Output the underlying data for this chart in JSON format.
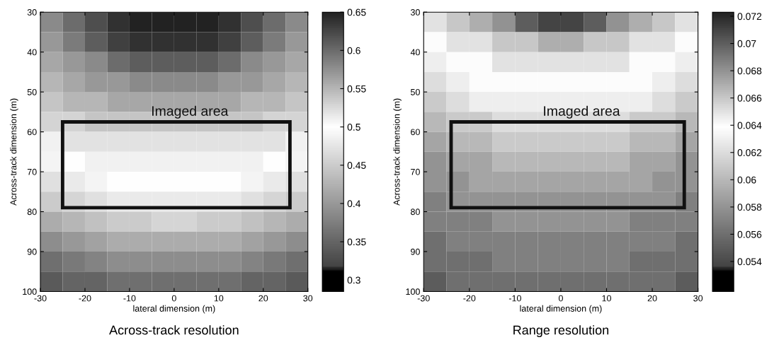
{
  "chart_data": [
    {
      "type": "heatmap",
      "title": "Across-track resolution",
      "xlabel": "lateral dimension (m)",
      "ylabel": "Across-track dimension (m)",
      "x": [
        -27.5,
        -22.5,
        -17.5,
        -12.5,
        -7.5,
        -2.5,
        2.5,
        7.5,
        12.5,
        17.5,
        22.5,
        27.5
      ],
      "y": [
        32.5,
        37.5,
        42.5,
        47.5,
        52.5,
        57.5,
        62.5,
        67.5,
        72.5,
        77.5,
        82.5,
        87.5,
        92.5,
        97.5
      ],
      "xlim": [
        -30,
        30
      ],
      "ylim": [
        100,
        30
      ],
      "xticks": [
        -30,
        -20,
        -10,
        0,
        10,
        20,
        30
      ],
      "yticks": [
        30,
        40,
        50,
        60,
        70,
        80,
        90,
        100
      ],
      "clim": [
        0.285,
        0.65
      ],
      "cticks": [
        0.3,
        0.35,
        0.4,
        0.45,
        0.5,
        0.55,
        0.6,
        0.65
      ],
      "annotations": [
        "Imaged area"
      ],
      "cells": [
        [
          0.58,
          0.6,
          0.62,
          0.64,
          0.65,
          0.65,
          0.65,
          0.65,
          0.64,
          0.62,
          0.6,
          0.58
        ],
        [
          0.57,
          0.59,
          0.61,
          0.63,
          0.64,
          0.64,
          0.64,
          0.64,
          0.63,
          0.61,
          0.59,
          0.57
        ],
        [
          0.56,
          0.57,
          0.58,
          0.6,
          0.61,
          0.61,
          0.61,
          0.61,
          0.6,
          0.58,
          0.57,
          0.56
        ],
        [
          0.55,
          0.56,
          0.57,
          0.57,
          0.58,
          0.58,
          0.58,
          0.58,
          0.57,
          0.57,
          0.56,
          0.55
        ],
        [
          0.54,
          0.55,
          0.55,
          0.56,
          0.56,
          0.56,
          0.56,
          0.56,
          0.56,
          0.55,
          0.55,
          0.54
        ],
        [
          0.53,
          0.53,
          0.54,
          0.54,
          0.54,
          0.54,
          0.54,
          0.54,
          0.54,
          0.54,
          0.53,
          0.53
        ],
        [
          0.51,
          0.52,
          0.52,
          0.52,
          0.52,
          0.52,
          0.52,
          0.52,
          0.52,
          0.52,
          0.52,
          0.51
        ],
        [
          0.49,
          0.5,
          0.51,
          0.51,
          0.51,
          0.51,
          0.51,
          0.51,
          0.51,
          0.51,
          0.5,
          0.49
        ],
        [
          0.47,
          0.48,
          0.49,
          0.5,
          0.5,
          0.5,
          0.5,
          0.5,
          0.5,
          0.49,
          0.48,
          0.47
        ],
        [
          0.45,
          0.46,
          0.47,
          0.48,
          0.48,
          0.48,
          0.48,
          0.48,
          0.48,
          0.47,
          0.46,
          0.45
        ],
        [
          0.42,
          0.43,
          0.44,
          0.45,
          0.45,
          0.46,
          0.46,
          0.45,
          0.45,
          0.44,
          0.43,
          0.42
        ],
        [
          0.39,
          0.4,
          0.41,
          0.42,
          0.42,
          0.42,
          0.42,
          0.42,
          0.42,
          0.41,
          0.4,
          0.39
        ],
        [
          0.36,
          0.37,
          0.38,
          0.39,
          0.39,
          0.39,
          0.39,
          0.39,
          0.39,
          0.38,
          0.37,
          0.36
        ],
        [
          0.34,
          0.35,
          0.35,
          0.36,
          0.36,
          0.36,
          0.36,
          0.36,
          0.36,
          0.35,
          0.35,
          0.34
        ]
      ]
    },
    {
      "type": "heatmap",
      "title": "Range resolution",
      "xlabel": "lateral dimension (m)",
      "ylabel": "Across-track dimension (m)",
      "x": [
        -27.5,
        -22.5,
        -17.5,
        -12.5,
        -7.5,
        -2.5,
        2.5,
        7.5,
        12.5,
        17.5,
        22.5,
        27.5
      ],
      "y": [
        32.5,
        37.5,
        42.5,
        47.5,
        52.5,
        57.5,
        62.5,
        67.5,
        72.5,
        77.5,
        82.5,
        87.5,
        92.5,
        97.5
      ],
      "xlim": [
        -30,
        30
      ],
      "ylim": [
        100,
        30
      ],
      "xticks": [
        -30,
        -20,
        -10,
        0,
        10,
        20,
        30
      ],
      "yticks": [
        30,
        40,
        50,
        60,
        70,
        80,
        90,
        100
      ],
      "clim": [
        0.0518,
        0.0723
      ],
      "cticks": [
        0.054,
        0.056,
        0.058,
        0.06,
        0.062,
        0.064,
        0.066,
        0.068,
        0.07,
        0.072
      ],
      "annotations": [
        "Imaged area"
      ],
      "cells": [
        [
          0.065,
          0.066,
          0.067,
          0.068,
          0.07,
          0.071,
          0.071,
          0.07,
          0.068,
          0.067,
          0.066,
          0.065
        ],
        [
          0.064,
          0.065,
          0.065,
          0.066,
          0.066,
          0.067,
          0.067,
          0.066,
          0.066,
          0.065,
          0.065,
          0.064
        ],
        [
          0.063,
          0.064,
          0.064,
          0.065,
          0.065,
          0.065,
          0.065,
          0.065,
          0.065,
          0.064,
          0.064,
          0.063
        ],
        [
          0.062,
          0.063,
          0.064,
          0.064,
          0.064,
          0.064,
          0.064,
          0.064,
          0.064,
          0.064,
          0.063,
          0.062
        ],
        [
          0.061,
          0.062,
          0.063,
          0.063,
          0.063,
          0.063,
          0.063,
          0.063,
          0.063,
          0.063,
          0.062,
          0.061
        ],
        [
          0.06,
          0.061,
          0.061,
          0.062,
          0.062,
          0.062,
          0.062,
          0.062,
          0.062,
          0.061,
          0.061,
          0.06
        ],
        [
          0.059,
          0.06,
          0.06,
          0.061,
          0.061,
          0.061,
          0.061,
          0.061,
          0.061,
          0.06,
          0.06,
          0.059
        ],
        [
          0.058,
          0.059,
          0.059,
          0.06,
          0.06,
          0.06,
          0.06,
          0.06,
          0.06,
          0.059,
          0.059,
          0.058
        ],
        [
          0.058,
          0.058,
          0.059,
          0.059,
          0.059,
          0.059,
          0.059,
          0.059,
          0.059,
          0.059,
          0.058,
          0.058
        ],
        [
          0.057,
          0.058,
          0.058,
          0.058,
          0.058,
          0.058,
          0.058,
          0.058,
          0.058,
          0.058,
          0.058,
          0.057
        ],
        [
          0.057,
          0.057,
          0.057,
          0.058,
          0.058,
          0.058,
          0.058,
          0.058,
          0.058,
          0.057,
          0.057,
          0.057
        ],
        [
          0.056,
          0.057,
          0.057,
          0.057,
          0.057,
          0.057,
          0.057,
          0.057,
          0.057,
          0.057,
          0.057,
          0.056
        ],
        [
          0.056,
          0.056,
          0.056,
          0.057,
          0.057,
          0.057,
          0.057,
          0.057,
          0.057,
          0.056,
          0.056,
          0.056
        ],
        [
          0.055,
          0.056,
          0.056,
          0.056,
          0.056,
          0.056,
          0.056,
          0.056,
          0.056,
          0.056,
          0.056,
          0.055
        ]
      ]
    }
  ]
}
